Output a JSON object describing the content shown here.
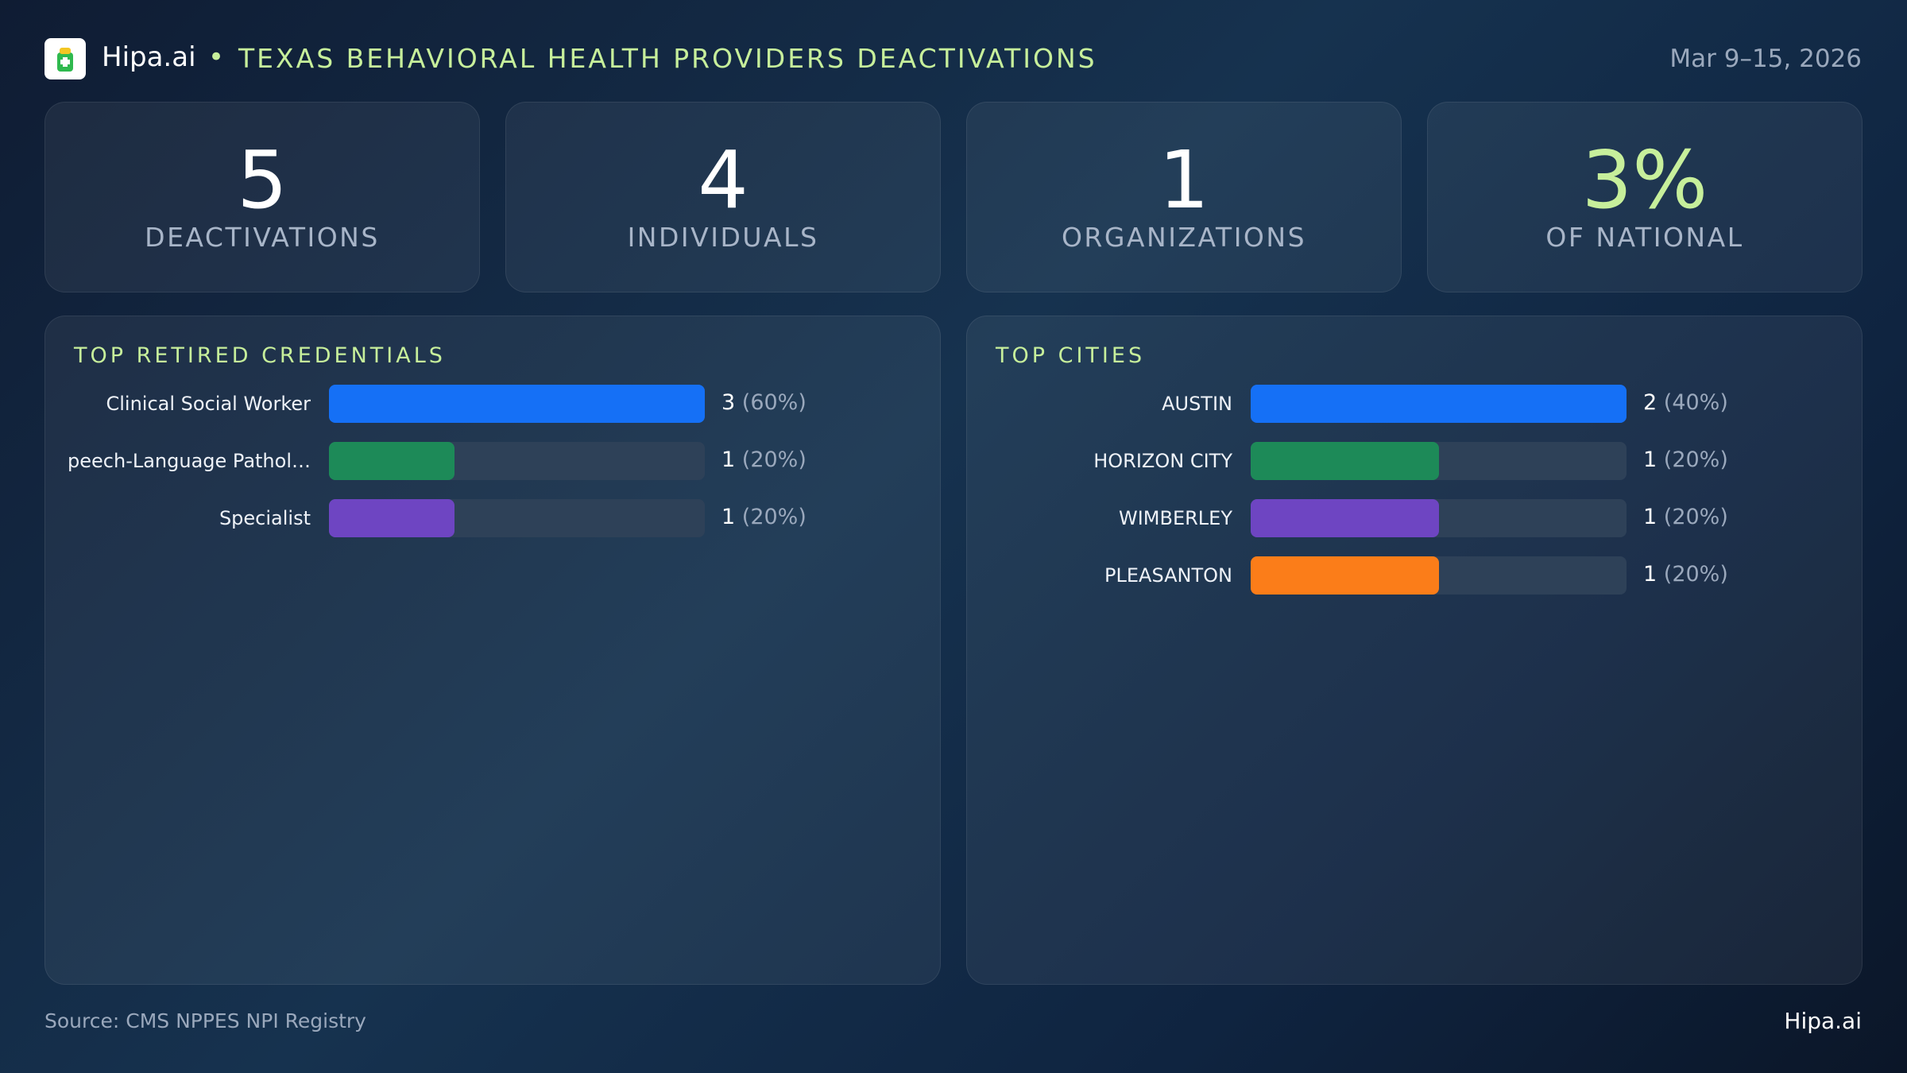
{
  "header": {
    "brand": "Hipa.ai",
    "title": "TEXAS BEHAVIORAL HEALTH PROVIDERS DEACTIVATIONS",
    "date": "Mar 9–15, 2026"
  },
  "stats": [
    {
      "value": 5,
      "label": "DEACTIVATIONS"
    },
    {
      "value": 4,
      "label": "INDIVIDUALS"
    },
    {
      "value": 1,
      "label": "ORGANIZATIONS"
    },
    {
      "value": 3,
      "value_label": "3%",
      "label": "OF NATIONAL"
    }
  ],
  "panels": [
    {
      "title": "TOP RETIRED CREDENTIALS",
      "categories": [
        "Clinical Social Worker",
        "peech-Language Pathol…",
        "Specialist"
      ],
      "values": [
        3,
        1,
        1
      ],
      "shares": [
        60,
        20,
        20
      ],
      "share_labels": [
        "(60%)",
        "(20%)",
        "(20%)"
      ],
      "colors": [
        "#1570f6",
        "#1d8a58",
        "#6e45c2"
      ]
    },
    {
      "title": "TOP CITIES",
      "categories": [
        "AUSTIN",
        "HORIZON CITY",
        "WIMBERLEY",
        "PLEASANTON"
      ],
      "values": [
        2,
        1,
        1,
        1
      ],
      "shares": [
        40,
        20,
        20,
        20
      ],
      "share_labels": [
        "(40%)",
        "(20%)",
        "(20%)",
        "(20%)"
      ],
      "colors": [
        "#1570f6",
        "#1d8a58",
        "#6e45c2",
        "#fb7d19"
      ]
    }
  ],
  "footer": {
    "source": "Source: CMS NPPES NPI Registry",
    "brand": "Hipa.ai"
  }
}
